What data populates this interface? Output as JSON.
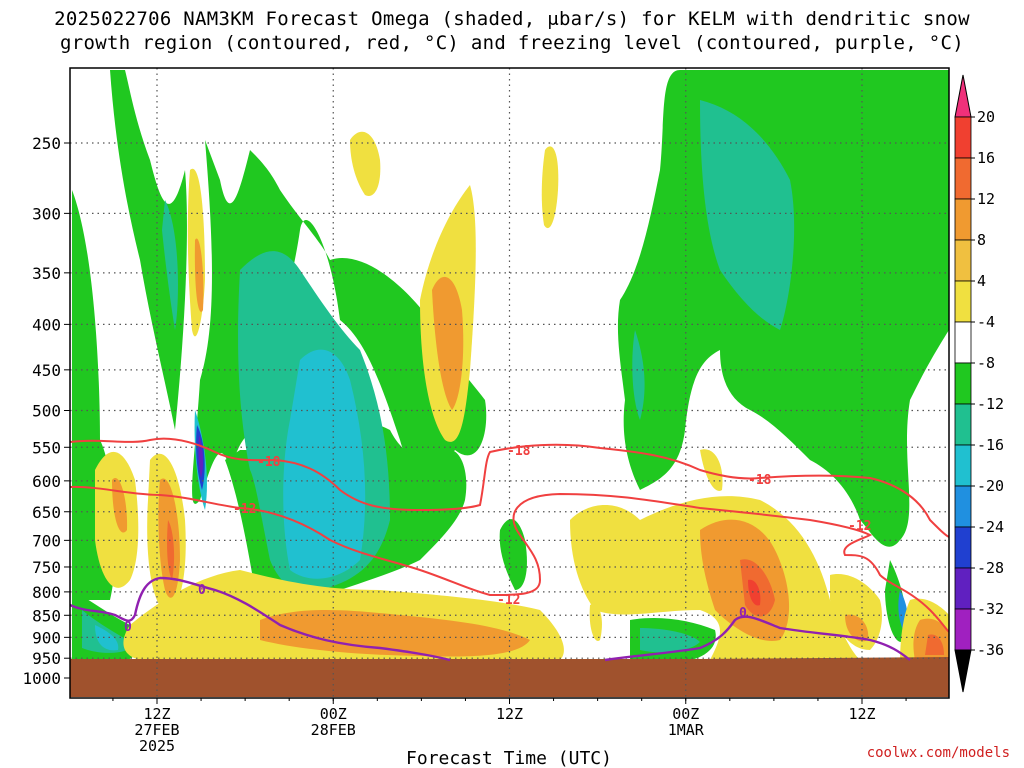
{
  "title_line1": "2025022706 NAM3KM Forecast Omega (shaded, μbar/s) for KELM with dendritic snow",
  "title_line2": "growth region (contoured, red, °C) and freezing level (contoured, purple, °C)",
  "credit": "coolwx.com/models",
  "chart_data": {
    "type": "heatmap",
    "title": "2025022706 NAM3KM Forecast Omega (shaded, μbar/s) for KELM with dendritic snow growth region (contoured, red, °C) and freezing level (contoured, purple, °C)",
    "xlabel": "Forecast Time (UTC)",
    "ylabel": "",
    "y_scale": "log-pressure",
    "y_ticks": [
      250,
      300,
      350,
      400,
      450,
      500,
      550,
      600,
      650,
      700,
      750,
      800,
      850,
      900,
      950,
      1000
    ],
    "x_ticks": [
      {
        "hour": 12,
        "l1": "12Z",
        "l2": "27FEB",
        "l3": "2025"
      },
      {
        "hour": 24,
        "l1": "00Z",
        "l2": "28FEB",
        "l3": ""
      },
      {
        "hour": 36,
        "l1": "12Z",
        "l2": "",
        "l3": ""
      },
      {
        "hour": 48,
        "l1": "00Z",
        "l2": "1MAR",
        "l3": ""
      },
      {
        "hour": 60,
        "l1": "12Z",
        "l2": "",
        "l3": ""
      }
    ],
    "x_range_hours": [
      6,
      66
    ],
    "grid": true,
    "colorbar": {
      "labels": [
        "20",
        "16",
        "12",
        "8",
        "4",
        "-4",
        "-8",
        "-12",
        "-16",
        "-20",
        "-24",
        "-28",
        "-32",
        "-36"
      ],
      "colors": [
        "#f0307a",
        "#f04030",
        "#f06a30",
        "#f09a30",
        "#f0c040",
        "#f0e040",
        "#ffffff",
        "#20c820",
        "#20c090",
        "#20c0d0",
        "#2090e0",
        "#2040d0",
        "#6020c0",
        "#a020c0",
        "#a0a0a0",
        "#000000"
      ]
    },
    "colors": {
      "ground": "#a0522d",
      "dgz_contour": "#f04040",
      "freezing_contour": "#9020b0"
    },
    "contour_labels": [
      {
        "text": "-18",
        "color": "#f04040"
      },
      {
        "text": "-12",
        "color": "#f04040"
      },
      {
        "text": "-18",
        "color": "#f04040"
      },
      {
        "text": "-12",
        "color": "#f04040"
      },
      {
        "text": "-18",
        "color": "#f04040"
      },
      {
        "text": "-12",
        "color": "#f04040"
      },
      {
        "text": "0",
        "color": "#9020b0"
      },
      {
        "text": "0",
        "color": "#9020b0"
      },
      {
        "text": "0",
        "color": "#9020b0"
      }
    ]
  }
}
